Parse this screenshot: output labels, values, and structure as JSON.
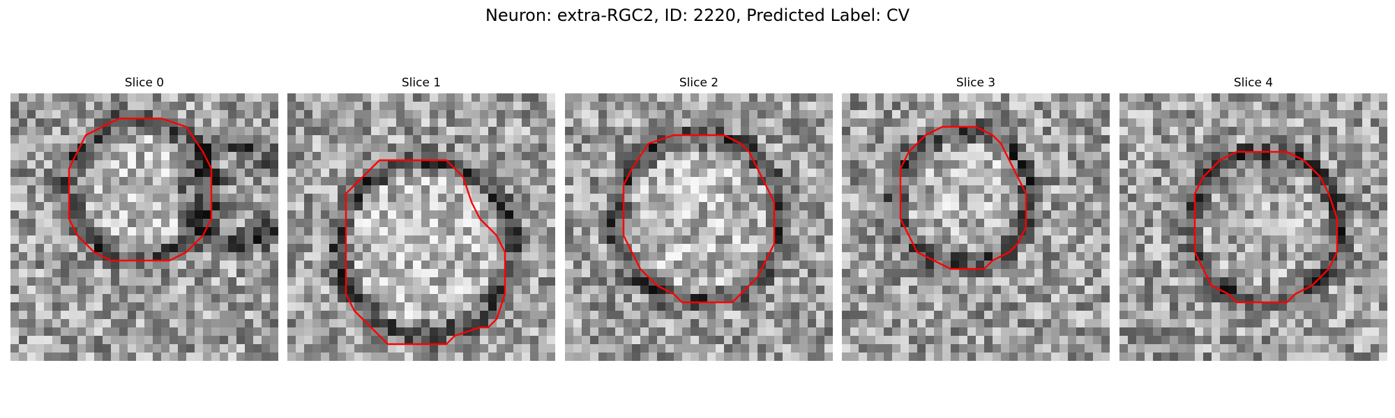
{
  "figure": {
    "title": "Neuron: extra-RGC2, ID: 2220, Predicted Label: CV"
  },
  "contour_color": "#ff0000",
  "colormap": "gray",
  "grid_size": 32,
  "panels": [
    {
      "title": "Slice 0"
    },
    {
      "title": "Slice 1"
    },
    {
      "title": "Slice 2"
    },
    {
      "title": "Slice 3"
    },
    {
      "title": "Slice 4"
    }
  ]
}
